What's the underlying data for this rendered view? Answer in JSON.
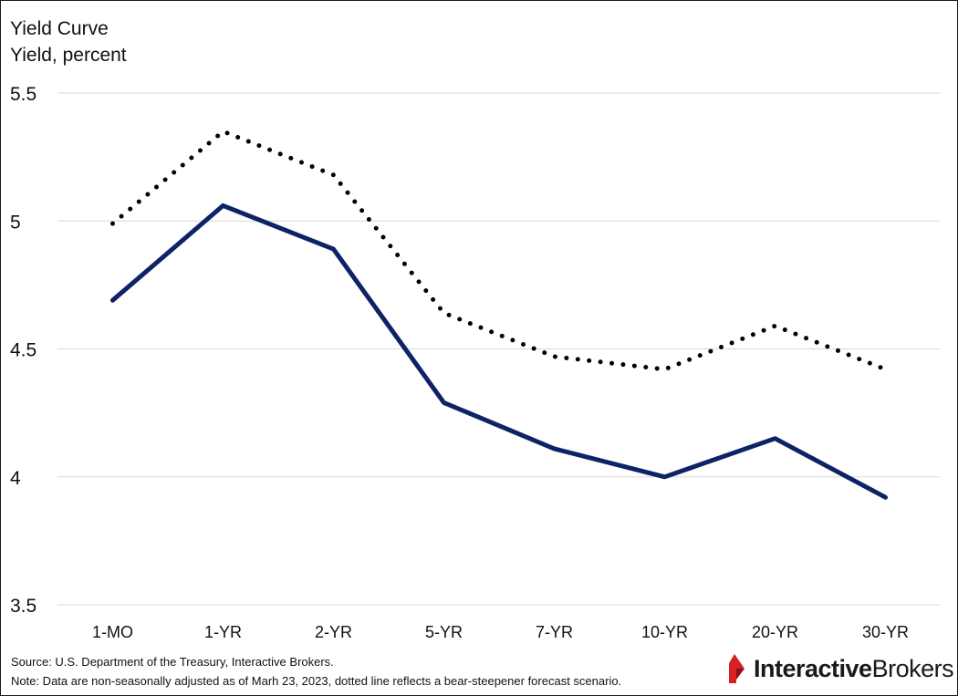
{
  "chart_data": {
    "type": "line",
    "title": "Yield Curve",
    "ylabel": "Yield, percent",
    "categories": [
      "1-MO",
      "1-YR",
      "2-YR",
      "5-YR",
      "7-YR",
      "10-YR",
      "20-YR",
      "30-YR"
    ],
    "ylim": [
      3.5,
      5.5
    ],
    "yticks": [
      "3.5",
      "4",
      "4.5",
      "5",
      "5.5"
    ],
    "grid": true,
    "series": [
      {
        "style": "solid",
        "color": "#0d2366",
        "values": [
          4.69,
          5.06,
          4.89,
          4.29,
          4.11,
          4.0,
          4.15,
          3.92
        ]
      },
      {
        "style": "dotted",
        "color": "#000000",
        "values": [
          4.99,
          5.35,
          5.18,
          4.64,
          4.47,
          4.42,
          4.59,
          4.42
        ]
      }
    ]
  },
  "notes": {
    "source": "Source: U.S. Department of the Treasury, Interactive Brokers.",
    "note": "Note: Data are non-seasonally adjusted as of Marh 23, 2023, dotted line reflects a bear-steepener forecast scenario."
  },
  "logo": {
    "word_bold": "Interactive",
    "word_regular": "Brokers",
    "mark_color": "#d81f26"
  }
}
